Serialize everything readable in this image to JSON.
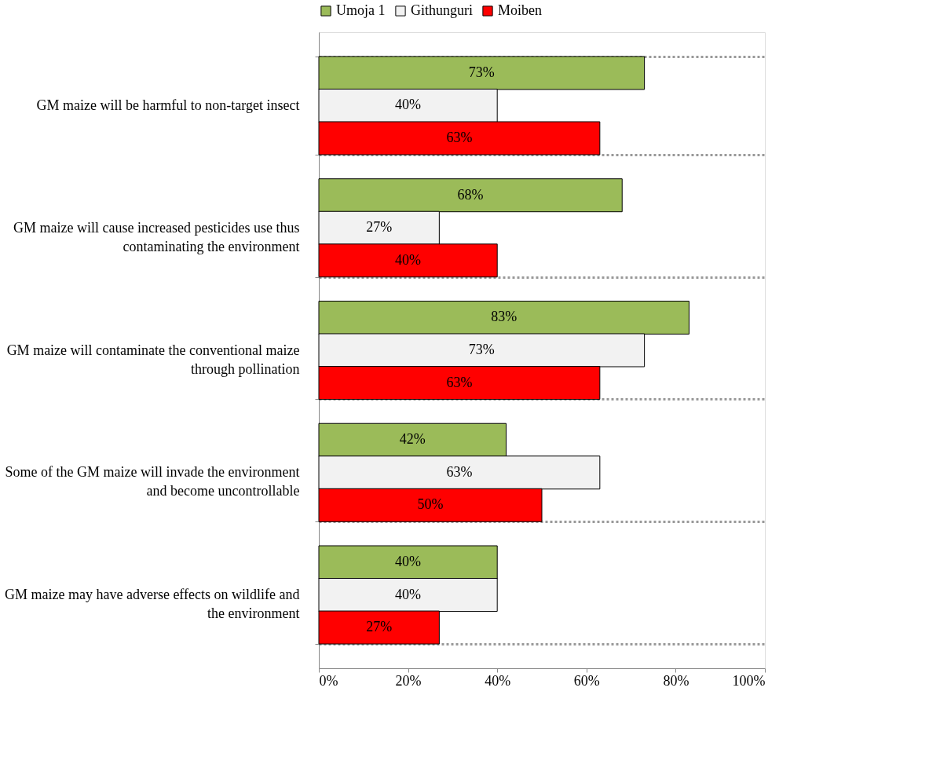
{
  "chart_data": {
    "type": "bar",
    "orientation": "horizontal",
    "categories": [
      "GM maize will be harmful to non-target insect",
      "GM maize will cause increased pesticides use thus contaminating the environment",
      "GM maize will contaminate the conventional maize through pollination",
      "Some of the GM maize will invade the environment and become uncontrollable",
      "GM maize may have adverse effects on wildlife and the environment"
    ],
    "series": [
      {
        "name": "Umoja 1",
        "color": "#9bbb59",
        "values": [
          73,
          68,
          83,
          42,
          40
        ],
        "value_labels": [
          "73%",
          "68%",
          "83%",
          "42%",
          "40%"
        ]
      },
      {
        "name": "Githunguri",
        "color": "#f2f2f2",
        "values": [
          40,
          27,
          73,
          63,
          40
        ],
        "value_labels": [
          "40%",
          "27%",
          "73%",
          "63%",
          "40%"
        ]
      },
      {
        "name": "Moiben",
        "color": "#ff0000",
        "values": [
          63,
          40,
          63,
          50,
          27
        ],
        "value_labels": [
          "63%",
          "40%",
          "63%",
          "50%",
          "27%"
        ]
      }
    ],
    "xlim": [
      0,
      100
    ],
    "xticks": [
      {
        "value": 0,
        "label": "0%"
      },
      {
        "value": 20,
        "label": "20%"
      },
      {
        "value": 40,
        "label": "40%"
      },
      {
        "value": 60,
        "label": "60%"
      },
      {
        "value": 80,
        "label": "80%"
      },
      {
        "value": 100,
        "label": "100%"
      }
    ],
    "grid": "y",
    "legend": "top"
  }
}
